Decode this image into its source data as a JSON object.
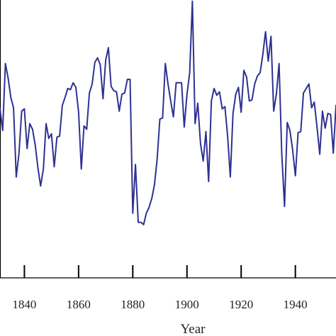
{
  "chart_data": {
    "type": "line",
    "title": "",
    "xlabel": "Year",
    "ylabel": "",
    "xlim": [
      1831,
      1955
    ],
    "x_ticks": [
      1840,
      1860,
      1880,
      1900,
      1920,
      1940
    ],
    "grid": false,
    "legend": "none",
    "colors": {
      "line": "#2e3192",
      "axis": "#000000"
    },
    "series": [
      {
        "x": [
          1831,
          1832,
          1833,
          1834,
          1835,
          1836,
          1837,
          1838,
          1839,
          1840,
          1841,
          1842,
          1843,
          1844,
          1845,
          1846,
          1847,
          1848,
          1849,
          1850,
          1851,
          1852,
          1853,
          1854,
          1855,
          1856,
          1857,
          1858,
          1859,
          1860,
          1861,
          1862,
          1863,
          1864,
          1865,
          1866,
          1867,
          1868,
          1869,
          1870,
          1871,
          1872,
          1873,
          1874,
          1875,
          1876,
          1877,
          1878,
          1879,
          1880,
          1881,
          1882,
          1883,
          1884,
          1885,
          1886,
          1887,
          1888,
          1889,
          1890,
          1891,
          1892,
          1893,
          1894,
          1895,
          1896,
          1897,
          1898,
          1899,
          1900,
          1901,
          1902,
          1903,
          1904,
          1905,
          1906,
          1907,
          1908,
          1909,
          1910,
          1911,
          1912,
          1913,
          1914,
          1915,
          1916,
          1917,
          1918,
          1919,
          1920,
          1921,
          1922,
          1923,
          1924,
          1925,
          1926,
          1927,
          1928,
          1929,
          1930,
          1931,
          1932,
          1933,
          1934,
          1935,
          1936,
          1937,
          1938,
          1939,
          1940,
          1941,
          1942,
          1943,
          1944,
          1945,
          1946,
          1947,
          1948,
          1949,
          1950,
          1951,
          1952,
          1953,
          1954,
          1955
        ],
        "values": [
          0.27,
          0.08,
          0.67,
          0.54,
          0.37,
          0.28,
          -0.33,
          -0.12,
          0.25,
          0.27,
          -0.08,
          0.14,
          0.09,
          -0.05,
          -0.25,
          -0.41,
          -0.26,
          0.14,
          0.01,
          0.05,
          -0.24,
          0.02,
          0.03,
          0.3,
          0.37,
          0.45,
          0.44,
          0.5,
          0.46,
          0.24,
          -0.26,
          0.12,
          0.09,
          0.41,
          0.49,
          0.68,
          0.72,
          0.66,
          0.36,
          0.7,
          0.81,
          0.47,
          0.43,
          0.42,
          0.25,
          0.4,
          0.41,
          0.53,
          0.53,
          -0.65,
          -0.22,
          -0.73,
          -0.73,
          -0.75,
          -0.65,
          -0.6,
          -0.52,
          -0.4,
          -0.17,
          0.18,
          0.19,
          0.67,
          0.49,
          0.34,
          0.2,
          0.5,
          0.5,
          0.5,
          0.11,
          0.4,
          0.59,
          1.22,
          0.14,
          0.32,
          -0.04,
          -0.19,
          0.07,
          -0.37,
          0.34,
          0.45,
          0.39,
          0.42,
          0.27,
          0.29,
          0.03,
          -0.33,
          0.23,
          0.4,
          0.46,
          0.24,
          0.61,
          0.55,
          0.34,
          0.35,
          0.49,
          0.56,
          0.59,
          0.75,
          0.95,
          0.69,
          0.91,
          0.25,
          0.4,
          0.67,
          -0.13,
          -0.59,
          0.15,
          0.08,
          -0.09,
          -0.32,
          0.06,
          0.07,
          0.41,
          0.45,
          0.49,
          0.28,
          0.33,
          0.11,
          -0.13,
          0.25,
          0.1,
          0.23,
          0.22,
          -0.12,
          0.3
        ]
      }
    ],
    "ylim": [
      -1.22,
      1.23
    ]
  }
}
